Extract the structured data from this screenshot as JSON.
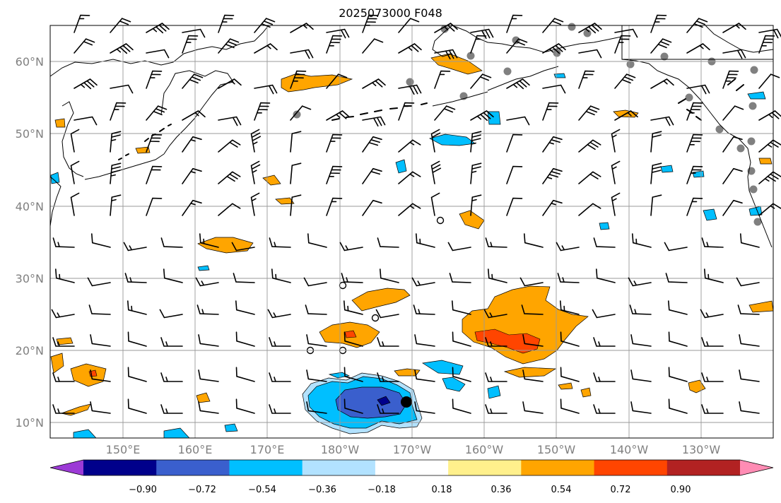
{
  "title": "2025073000 F048",
  "map": {
    "lat_labels": [
      "60°N",
      "50°N",
      "40°N",
      "30°N",
      "20°N",
      "10°N"
    ],
    "lon_labels": [
      "150°E",
      "160°E",
      "170°E",
      "180°W",
      "170°W",
      "160°W",
      "150°W",
      "140°W",
      "130°W"
    ],
    "label_color": "#808080"
  },
  "colorbar": {
    "colors": [
      "#9c3ad6",
      "#00008b",
      "#3a5fcd",
      "#00bfff",
      "#b2e2ff",
      "#ffffff",
      "#fff08c",
      "#ffa500",
      "#ff4500",
      "#b22222",
      "#ff8cb4"
    ],
    "tick_labels": [
      "−0.90",
      "−0.72",
      "−0.54",
      "−0.36",
      "−0.18",
      "0.18",
      "0.36",
      "0.54",
      "0.72",
      "0.90"
    ]
  }
}
